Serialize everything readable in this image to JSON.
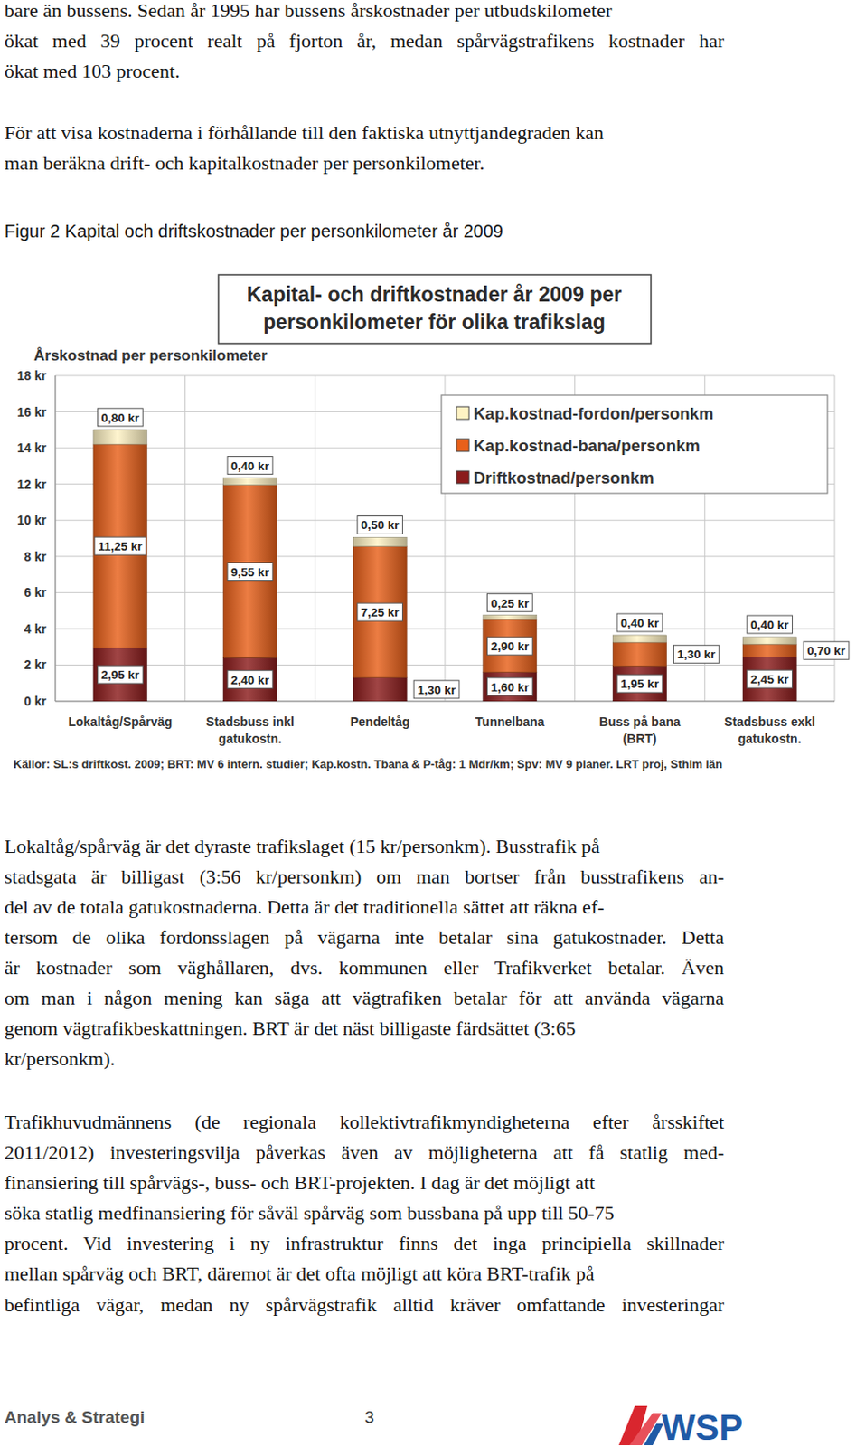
{
  "document": {
    "text_before": [
      [
        "bare än bussens. Sedan år 1995 har bussens årskostnader per utbudskilometer",
        "ökat med 39 procent realt på fjorton år, medan spårvägstrafikens kostnader har",
        "ökat med 103 procent."
      ],
      [
        "För att visa kostnaderna i förhållande till den faktiska utnyttjandegraden kan",
        "man beräkna drift- och kapitalkostnader per personkilometer."
      ]
    ],
    "figure_caption": "Figur 2 Kapital och driftskostnader per personkilometer år 2009",
    "text_after": [
      [
        "Lokaltåg/spårväg är det dyraste trafikslaget (15 kr/personkm). Busstrafik på",
        "stadsgata är billigast (3:56 kr/personkm) om man bortser från busstrafikens an-",
        "del av de totala gatukostnaderna. Detta är det traditionella sättet att räkna ef-",
        "tersom de olika fordonsslagen på vägarna inte betalar sina gatukostnader. Detta",
        "är kostnader som väghållaren, dvs. kommunen eller Trafikverket betalar. Även",
        "om man i någon mening kan säga att vägtrafiken betalar för att använda vägarna",
        "genom vägtrafikbeskattningen. BRT är det näst billigaste färdsättet (3:65",
        "kr/personkm)."
      ],
      [
        "Trafikhuvudmännens (de regionala kollektivtrafikmyndigheterna efter årsskiftet",
        "2011/2012) investeringsvilja påverkas även av möjligheterna att få statlig med-",
        "finansiering till spårvägs-, buss- och BRT-projekten. I dag är det möjligt att",
        "söka statlig medfinansiering för såväl spårväg som bussbana på upp till 50-75",
        "procent. Vid investering i ny infrastruktur finns det inga principiella skillnader",
        "mellan spårväg och BRT, däremot är det ofta möjligt att köra BRT-trafik på",
        "befintliga vägar, medan ny spårvägstrafik alltid kräver omfattande investeringar"
      ]
    ],
    "footer": {
      "left": "Analys & Strategi",
      "page_number": 3,
      "logo": "WSP"
    }
  },
  "chart_data": {
    "type": "bar",
    "title": "Kapital- och driftkostnader år 2009 per personkilometer för olika trafikslag",
    "y_label": "Årskostnad per personkilometer",
    "categories": [
      "Lokaltåg/Spårväg",
      "Stadsbuss inkl gatukostn.",
      "Pendeltåg",
      "Tunnelbana",
      "Buss på bana (BRT)",
      "Stadsbuss exkl gatukostn."
    ],
    "series": [
      {
        "name": "Driftkostnad/personkm",
        "color": "#8b1c1c",
        "values": [
          2.95,
          2.4,
          1.3,
          1.6,
          1.95,
          2.45
        ],
        "value_labels": [
          "2,95 kr",
          "2,40 kr",
          "1,30 kr",
          "1,60 kr",
          "1,95 kr",
          "2,45 kr"
        ]
      },
      {
        "name": "Kap.kostnad-bana/personkm",
        "color": "#e8601a",
        "values": [
          11.25,
          9.55,
          7.25,
          2.9,
          1.3,
          0.7
        ],
        "value_labels": [
          "11,25 kr",
          "9,55 kr",
          "7,25 kr",
          "2,90 kr",
          "1,30 kr",
          "0,70 kr"
        ]
      },
      {
        "name": "Kap.kostnad-fordon/personkm",
        "color": "#fff3c4",
        "values": [
          0.8,
          0.4,
          0.5,
          0.25,
          0.4,
          0.4
        ],
        "value_labels": [
          "0,80 kr",
          "0,40 kr",
          "0,50 kr",
          "0,25 kr",
          "0,40 kr",
          "0,40 kr"
        ]
      }
    ],
    "ylim": [
      0,
      18
    ],
    "yticks": [
      {
        "value": 0,
        "label": "0 kr"
      },
      {
        "value": 2,
        "label": "2 kr"
      },
      {
        "value": 4,
        "label": "4 kr"
      },
      {
        "value": 6,
        "label": "6 kr"
      },
      {
        "value": 8,
        "label": "8 kr"
      },
      {
        "value": 10,
        "label": "10 kr"
      },
      {
        "value": 12,
        "label": "12 kr"
      },
      {
        "value": 14,
        "label": "14 kr"
      },
      {
        "value": 16,
        "label": "16 kr"
      },
      {
        "value": 18,
        "label": "18 kr"
      }
    ],
    "stacked": true,
    "grid": true,
    "legend": "top-right",
    "data_labels": true,
    "source": "Källor: SL:s driftkost. 2009; BRT: MV 6 intern. studier; Kap.kostn. Tbana & P-tåg: 1 Mdr/km; Spv: MV 9 planer. LRT proj, Sthlm län"
  }
}
